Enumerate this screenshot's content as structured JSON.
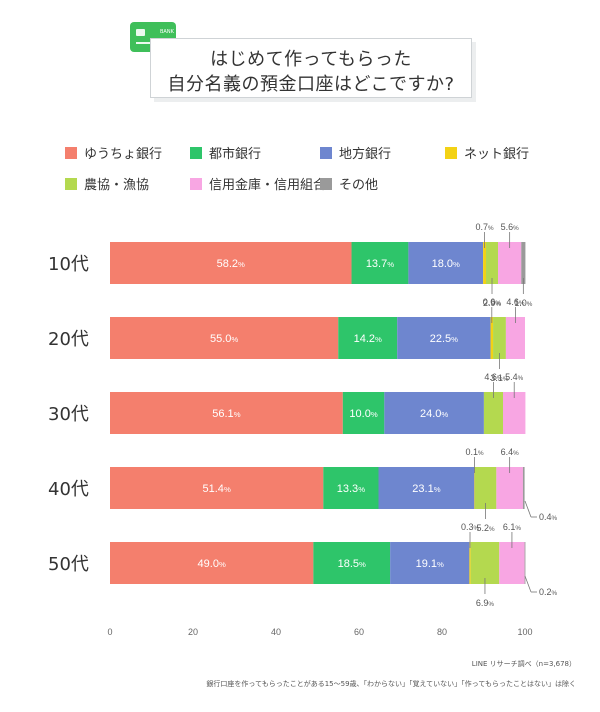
{
  "title": {
    "line1": "はじめて作ってもらった",
    "line2": "自分名義の預金口座はどこですか?"
  },
  "card_icon": {
    "name": "bank-card-icon",
    "text": "BANK"
  },
  "colors": {
    "ゆうちょ銀行": "#f47f6d",
    "都市銀行": "#2ec56a",
    "地方銀行": "#6e86cf",
    "ネット銀行": "#f3d215",
    "農協・漁協": "#b4d94f",
    "信用金庫・信用組合": "#f8a6e3",
    "その他": "#9a9a9a"
  },
  "chart_data": {
    "type": "bar",
    "orientation": "horizontal",
    "stacked": true,
    "categories": [
      "10代",
      "20代",
      "30代",
      "40代",
      "50代"
    ],
    "series": [
      {
        "name": "ゆうちょ銀行",
        "values": [
          58.2,
          55.0,
          56.1,
          51.4,
          49.0
        ]
      },
      {
        "name": "都市銀行",
        "values": [
          13.7,
          14.2,
          10.0,
          13.3,
          18.5
        ]
      },
      {
        "name": "地方銀行",
        "values": [
          18.0,
          22.5,
          24.0,
          23.1,
          19.1
        ]
      },
      {
        "name": "ネット銀行",
        "values": [
          0.7,
          0.6,
          0.0,
          0.1,
          0.3
        ]
      },
      {
        "name": "農協・漁協",
        "values": [
          2.9,
          3.1,
          4.6,
          5.2,
          6.9
        ]
      },
      {
        "name": "信用金庫・信用組合",
        "values": [
          5.6,
          4.6,
          5.4,
          6.4,
          6.1
        ]
      },
      {
        "name": "その他",
        "values": [
          1.0,
          0.0,
          0.0,
          0.4,
          0.2
        ]
      }
    ],
    "inside_labels": [
      [
        "58.2%",
        "13.7%",
        "18.0%"
      ],
      [
        "55.0%",
        "14.2%",
        "22.5%"
      ],
      [
        "56.1%",
        "10.0%",
        "24.0%"
      ],
      [
        "51.4%",
        "13.3%",
        "23.1%"
      ],
      [
        "49.0%",
        "18.5%",
        "19.1%"
      ]
    ],
    "callouts": [
      {
        "row": 0,
        "label": "0.7%",
        "series": 3,
        "pos": "above"
      },
      {
        "row": 0,
        "label": "5.6%",
        "series": 5,
        "pos": "above"
      },
      {
        "row": 0,
        "label": "2.9%",
        "series": 4,
        "pos": "below"
      },
      {
        "row": 0,
        "label": "1.0%",
        "series": 6,
        "pos": "below"
      },
      {
        "row": 1,
        "label": "0.6%",
        "series": 3,
        "pos": "above"
      },
      {
        "row": 1,
        "label": "4.6%",
        "series": 5,
        "pos": "above"
      },
      {
        "row": 1,
        "label": "3.1%",
        "series": 4,
        "pos": "below"
      },
      {
        "row": 2,
        "label": "4.6%",
        "series": 4,
        "pos": "above"
      },
      {
        "row": 2,
        "label": "5.4%",
        "series": 5,
        "pos": "above"
      },
      {
        "row": 3,
        "label": "0.1%",
        "series": 3,
        "pos": "above"
      },
      {
        "row": 3,
        "label": "6.4%",
        "series": 5,
        "pos": "above"
      },
      {
        "row": 3,
        "label": "5.2%",
        "series": 4,
        "pos": "below"
      },
      {
        "row": 3,
        "label": "0.4%",
        "series": 6,
        "pos": "right"
      },
      {
        "row": 4,
        "label": "0.3%",
        "series": 3,
        "pos": "above"
      },
      {
        "row": 4,
        "label": "6.1%",
        "series": 5,
        "pos": "above"
      },
      {
        "row": 4,
        "label": "6.9%",
        "series": 4,
        "pos": "below"
      },
      {
        "row": 4,
        "label": "0.2%",
        "series": 6,
        "pos": "right"
      }
    ],
    "xaxis": {
      "ticks": [
        0,
        20,
        40,
        60,
        80,
        100
      ],
      "range": [
        0,
        100
      ]
    },
    "legend": [
      "ゆうちょ銀行",
      "都市銀行",
      "地方銀行",
      "ネット銀行",
      "農協・漁協",
      "信用金庫・信用組合",
      "その他"
    ],
    "legend_position": "top",
    "grid": false
  },
  "notes": {
    "source": "LINE リサーチ調べ（n=3,678）",
    "footnote": "銀行口座を作ってもらったことがある15～59歳、「わからない」「覚えていない」「作ってもらったことはない」は除く"
  }
}
